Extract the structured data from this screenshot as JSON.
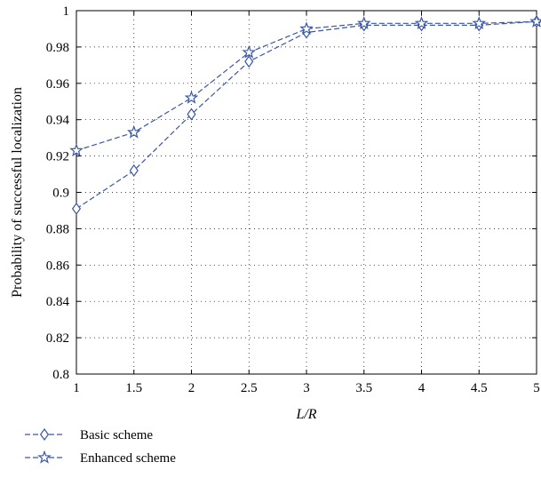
{
  "chart_data": {
    "type": "line",
    "title": "",
    "xlabel": "L/R",
    "ylabel": "Probability of successful localization",
    "xlim": [
      1,
      5
    ],
    "ylim": [
      0.8,
      1
    ],
    "xticks": [
      "1",
      "1.5",
      "2",
      "2.5",
      "3",
      "3.5",
      "4",
      "4.5",
      "5"
    ],
    "yticks": [
      "0.8",
      "0.82",
      "0.84",
      "0.86",
      "0.88",
      "0.9",
      "0.92",
      "0.94",
      "0.96",
      "0.98",
      "1"
    ],
    "grid": true,
    "legend_position": "bottom-left, below plot",
    "x": [
      1,
      1.5,
      2,
      2.5,
      3,
      3.5,
      4,
      4.5,
      5
    ],
    "series": [
      {
        "name": "Basic scheme",
        "marker": "diamond",
        "line_style": "dashed",
        "color": "#3a56a6",
        "values": [
          0.891,
          0.912,
          0.943,
          0.972,
          0.988,
          0.992,
          0.992,
          0.992,
          0.994
        ]
      },
      {
        "name": "Enhanced scheme",
        "marker": "star",
        "line_style": "dashed",
        "color": "#3a56a6",
        "values": [
          0.923,
          0.933,
          0.952,
          0.977,
          0.99,
          0.993,
          0.993,
          0.993,
          0.994
        ]
      }
    ]
  }
}
